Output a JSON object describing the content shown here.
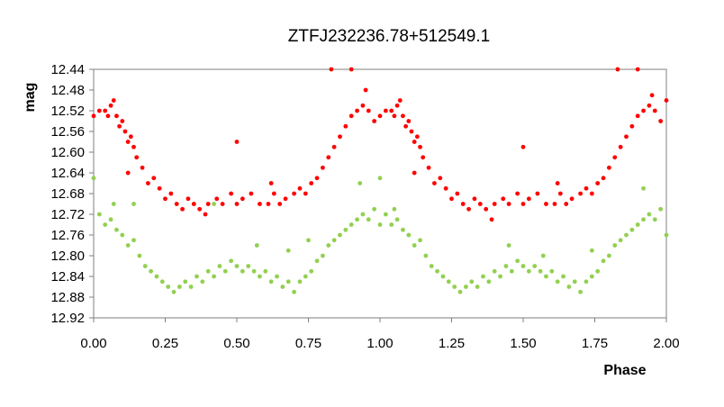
{
  "chart_data": {
    "type": "scatter",
    "title": "ZTFJ232236.78+512549.1",
    "xlabel": "Phase",
    "ylabel": "mag",
    "xlim": [
      0.0,
      2.0
    ],
    "ylim": [
      12.44,
      12.92
    ],
    "y_inverted": true,
    "grid": false,
    "legend": "none",
    "x_ticks": [
      "0.00",
      "0.25",
      "0.50",
      "0.75",
      "1.00",
      "1.25",
      "1.50",
      "1.75",
      "2.00"
    ],
    "y_ticks": [
      "12.44",
      "12.48",
      "12.52",
      "12.56",
      "12.60",
      "12.64",
      "12.68",
      "12.72",
      "12.76",
      "12.80",
      "12.84",
      "12.88",
      "12.92"
    ],
    "series": [
      {
        "color": "#ff0000",
        "points": [
          [
            0.0,
            12.53
          ],
          [
            0.02,
            12.52
          ],
          [
            0.04,
            12.52
          ],
          [
            0.05,
            12.53
          ],
          [
            0.06,
            12.51
          ],
          [
            0.07,
            12.5
          ],
          [
            0.08,
            12.53
          ],
          [
            0.09,
            12.55
          ],
          [
            0.1,
            12.54
          ],
          [
            0.11,
            12.56
          ],
          [
            0.12,
            12.58
          ],
          [
            0.13,
            12.57
          ],
          [
            0.14,
            12.59
          ],
          [
            0.15,
            12.61
          ],
          [
            0.17,
            12.63
          ],
          [
            0.19,
            12.66
          ],
          [
            0.21,
            12.65
          ],
          [
            0.23,
            12.67
          ],
          [
            0.25,
            12.69
          ],
          [
            0.27,
            12.68
          ],
          [
            0.29,
            12.7
          ],
          [
            0.31,
            12.71
          ],
          [
            0.33,
            12.69
          ],
          [
            0.35,
            12.7
          ],
          [
            0.37,
            12.71
          ],
          [
            0.4,
            12.7
          ],
          [
            0.43,
            12.69
          ],
          [
            0.45,
            12.7
          ],
          [
            0.48,
            12.68
          ],
          [
            0.5,
            12.7
          ],
          [
            0.52,
            12.69
          ],
          [
            0.55,
            12.68
          ],
          [
            0.58,
            12.7
          ],
          [
            0.61,
            12.7
          ],
          [
            0.63,
            12.68
          ],
          [
            0.65,
            12.7
          ],
          [
            0.67,
            12.69
          ],
          [
            0.7,
            12.68
          ],
          [
            0.72,
            12.67
          ],
          [
            0.74,
            12.68
          ],
          [
            0.76,
            12.66
          ],
          [
            0.78,
            12.65
          ],
          [
            0.8,
            12.63
          ],
          [
            0.82,
            12.61
          ],
          [
            0.84,
            12.59
          ],
          [
            0.86,
            12.57
          ],
          [
            0.88,
            12.55
          ],
          [
            0.9,
            12.53
          ],
          [
            0.92,
            12.52
          ],
          [
            0.94,
            12.51
          ],
          [
            0.96,
            12.52
          ],
          [
            0.98,
            12.54
          ],
          [
            1.0,
            12.53
          ],
          [
            1.02,
            12.52
          ],
          [
            1.04,
            12.52
          ],
          [
            1.05,
            12.53
          ],
          [
            1.06,
            12.51
          ],
          [
            1.07,
            12.5
          ],
          [
            1.08,
            12.53
          ],
          [
            1.09,
            12.55
          ],
          [
            1.1,
            12.54
          ],
          [
            1.11,
            12.56
          ],
          [
            1.12,
            12.58
          ],
          [
            1.13,
            12.57
          ],
          [
            1.14,
            12.59
          ],
          [
            1.15,
            12.61
          ],
          [
            1.17,
            12.63
          ],
          [
            1.19,
            12.66
          ],
          [
            1.21,
            12.65
          ],
          [
            1.23,
            12.67
          ],
          [
            1.25,
            12.69
          ],
          [
            1.27,
            12.68
          ],
          [
            1.29,
            12.7
          ],
          [
            1.31,
            12.71
          ],
          [
            1.33,
            12.69
          ],
          [
            1.35,
            12.7
          ],
          [
            1.37,
            12.71
          ],
          [
            1.4,
            12.7
          ],
          [
            1.43,
            12.69
          ],
          [
            1.45,
            12.7
          ],
          [
            1.48,
            12.68
          ],
          [
            1.5,
            12.7
          ],
          [
            1.52,
            12.69
          ],
          [
            1.55,
            12.68
          ],
          [
            1.58,
            12.7
          ],
          [
            1.61,
            12.7
          ],
          [
            1.63,
            12.68
          ],
          [
            1.65,
            12.7
          ],
          [
            1.67,
            12.69
          ],
          [
            1.7,
            12.68
          ],
          [
            1.72,
            12.67
          ],
          [
            1.74,
            12.68
          ],
          [
            1.76,
            12.66
          ],
          [
            1.78,
            12.65
          ],
          [
            1.8,
            12.63
          ],
          [
            1.82,
            12.61
          ],
          [
            1.84,
            12.59
          ],
          [
            1.86,
            12.57
          ],
          [
            1.88,
            12.55
          ],
          [
            1.9,
            12.53
          ],
          [
            1.92,
            12.52
          ],
          [
            1.94,
            12.51
          ],
          [
            1.96,
            12.52
          ],
          [
            1.98,
            12.54
          ],
          [
            2.0,
            12.5
          ],
          [
            0.83,
            12.44
          ],
          [
            0.9,
            12.44
          ],
          [
            1.83,
            12.44
          ],
          [
            1.9,
            12.44
          ],
          [
            0.5,
            12.58
          ],
          [
            0.39,
            12.72
          ],
          [
            1.5,
            12.59
          ],
          [
            1.39,
            12.73
          ],
          [
            0.95,
            12.48
          ],
          [
            1.95,
            12.49
          ],
          [
            0.12,
            12.64
          ],
          [
            1.12,
            12.64
          ],
          [
            0.62,
            12.66
          ],
          [
            1.62,
            12.66
          ]
        ]
      },
      {
        "color": "#92d050",
        "points": [
          [
            0.0,
            12.65
          ],
          [
            0.02,
            12.72
          ],
          [
            0.04,
            12.74
          ],
          [
            0.06,
            12.73
          ],
          [
            0.08,
            12.75
          ],
          [
            0.1,
            12.76
          ],
          [
            0.12,
            12.78
          ],
          [
            0.14,
            12.77
          ],
          [
            0.16,
            12.8
          ],
          [
            0.18,
            12.82
          ],
          [
            0.2,
            12.83
          ],
          [
            0.22,
            12.84
          ],
          [
            0.24,
            12.85
          ],
          [
            0.26,
            12.86
          ],
          [
            0.28,
            12.87
          ],
          [
            0.3,
            12.86
          ],
          [
            0.32,
            12.85
          ],
          [
            0.34,
            12.86
          ],
          [
            0.36,
            12.84
          ],
          [
            0.38,
            12.85
          ],
          [
            0.4,
            12.83
          ],
          [
            0.42,
            12.84
          ],
          [
            0.44,
            12.82
          ],
          [
            0.46,
            12.83
          ],
          [
            0.48,
            12.81
          ],
          [
            0.5,
            12.82
          ],
          [
            0.52,
            12.83
          ],
          [
            0.54,
            12.82
          ],
          [
            0.56,
            12.83
          ],
          [
            0.58,
            12.84
          ],
          [
            0.6,
            12.83
          ],
          [
            0.62,
            12.85
          ],
          [
            0.64,
            12.84
          ],
          [
            0.66,
            12.86
          ],
          [
            0.68,
            12.85
          ],
          [
            0.7,
            12.87
          ],
          [
            0.72,
            12.85
          ],
          [
            0.74,
            12.84
          ],
          [
            0.76,
            12.83
          ],
          [
            0.78,
            12.81
          ],
          [
            0.8,
            12.8
          ],
          [
            0.82,
            12.78
          ],
          [
            0.84,
            12.77
          ],
          [
            0.86,
            12.76
          ],
          [
            0.88,
            12.75
          ],
          [
            0.9,
            12.74
          ],
          [
            0.92,
            12.73
          ],
          [
            0.94,
            12.72
          ],
          [
            0.96,
            12.73
          ],
          [
            0.98,
            12.71
          ],
          [
            1.0,
            12.74
          ],
          [
            1.02,
            12.72
          ],
          [
            1.04,
            12.74
          ],
          [
            1.06,
            12.73
          ],
          [
            1.08,
            12.75
          ],
          [
            1.1,
            12.76
          ],
          [
            1.12,
            12.78
          ],
          [
            1.14,
            12.77
          ],
          [
            1.16,
            12.8
          ],
          [
            1.18,
            12.82
          ],
          [
            1.2,
            12.83
          ],
          [
            1.22,
            12.84
          ],
          [
            1.24,
            12.85
          ],
          [
            1.26,
            12.86
          ],
          [
            1.28,
            12.87
          ],
          [
            1.3,
            12.86
          ],
          [
            1.32,
            12.85
          ],
          [
            1.34,
            12.86
          ],
          [
            1.36,
            12.84
          ],
          [
            1.38,
            12.85
          ],
          [
            1.4,
            12.83
          ],
          [
            1.42,
            12.84
          ],
          [
            1.44,
            12.82
          ],
          [
            1.46,
            12.83
          ],
          [
            1.48,
            12.81
          ],
          [
            1.5,
            12.82
          ],
          [
            1.52,
            12.83
          ],
          [
            1.54,
            12.82
          ],
          [
            1.56,
            12.83
          ],
          [
            1.58,
            12.84
          ],
          [
            1.6,
            12.83
          ],
          [
            1.62,
            12.85
          ],
          [
            1.64,
            12.84
          ],
          [
            1.66,
            12.86
          ],
          [
            1.68,
            12.85
          ],
          [
            1.7,
            12.87
          ],
          [
            1.72,
            12.85
          ],
          [
            1.74,
            12.84
          ],
          [
            1.76,
            12.83
          ],
          [
            1.78,
            12.81
          ],
          [
            1.8,
            12.8
          ],
          [
            1.82,
            12.78
          ],
          [
            1.84,
            12.77
          ],
          [
            1.86,
            12.76
          ],
          [
            1.88,
            12.75
          ],
          [
            1.9,
            12.74
          ],
          [
            1.92,
            12.73
          ],
          [
            1.94,
            12.72
          ],
          [
            1.96,
            12.73
          ],
          [
            1.98,
            12.71
          ],
          [
            2.0,
            12.76
          ],
          [
            0.93,
            12.66
          ],
          [
            1.0,
            12.65
          ],
          [
            1.92,
            12.67
          ],
          [
            0.07,
            12.7
          ],
          [
            0.14,
            12.7
          ],
          [
            0.42,
            12.7
          ],
          [
            0.57,
            12.78
          ],
          [
            0.68,
            12.79
          ],
          [
            1.45,
            12.78
          ],
          [
            1.57,
            12.8
          ],
          [
            1.74,
            12.79
          ],
          [
            0.75,
            12.77
          ],
          [
            1.05,
            12.71
          ]
        ]
      }
    ]
  }
}
